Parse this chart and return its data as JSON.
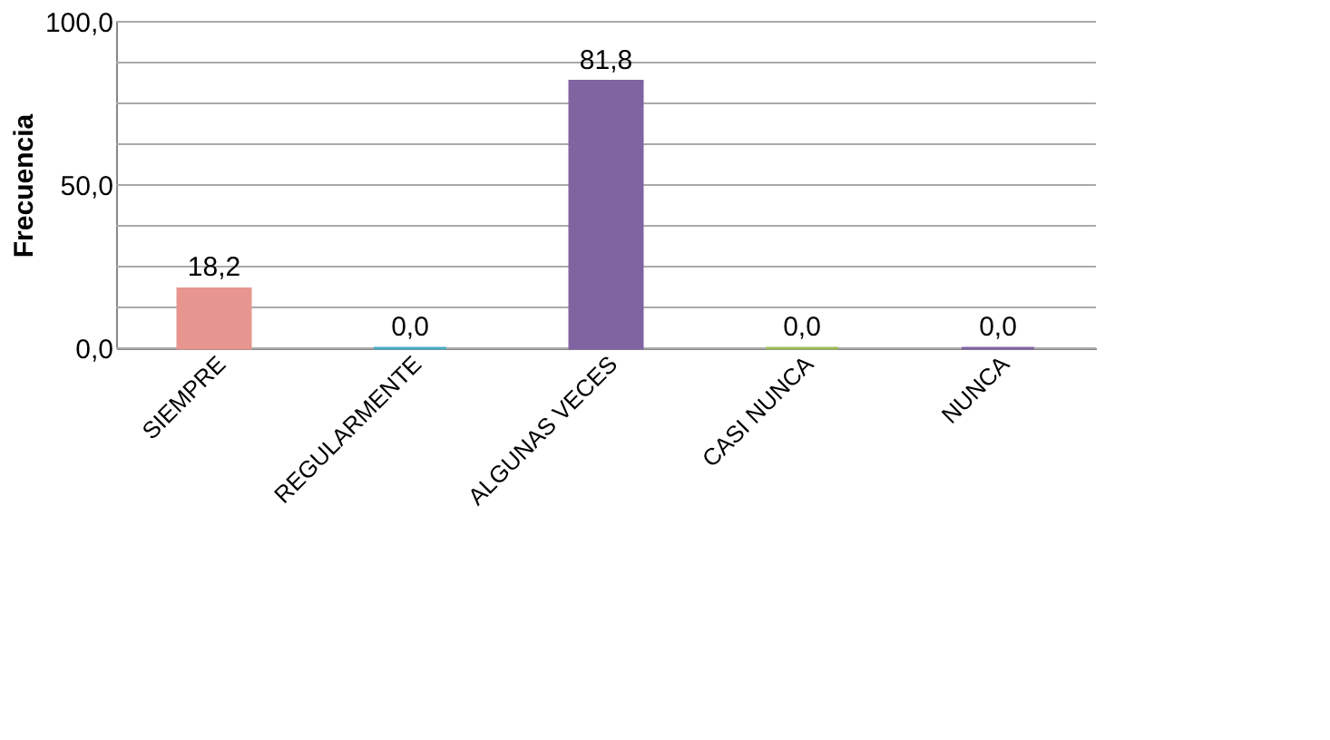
{
  "chart_data": {
    "type": "bar",
    "ylabel": "Frecuencia",
    "categories": [
      "SIEMPRE",
      "REGULARMENTE",
      "ALGUNAS VECES",
      "CASI NUNCA",
      "NUNCA"
    ],
    "values": [
      18.2,
      0.0,
      81.8,
      0.0,
      0.0
    ],
    "colors": [
      "#e6958f",
      "#4bacc6",
      "#8064a2",
      "#9bbb59",
      "#8064a2"
    ],
    "value_labels": [
      "18,2",
      "0,0",
      "81,8",
      "0,0",
      "0,0"
    ],
    "ylim": [
      0,
      100
    ],
    "yticks": [
      {
        "value": 0,
        "label": "0,0"
      },
      {
        "value": 12.5,
        "label": null
      },
      {
        "value": 25,
        "label": null
      },
      {
        "value": 37.5,
        "label": null
      },
      {
        "value": 50,
        "label": "50,0"
      },
      {
        "value": 62.5,
        "label": null
      },
      {
        "value": 75,
        "label": null
      },
      {
        "value": 87.5,
        "label": null
      },
      {
        "value": 100,
        "label": "100,0"
      }
    ],
    "grid": "y"
  }
}
